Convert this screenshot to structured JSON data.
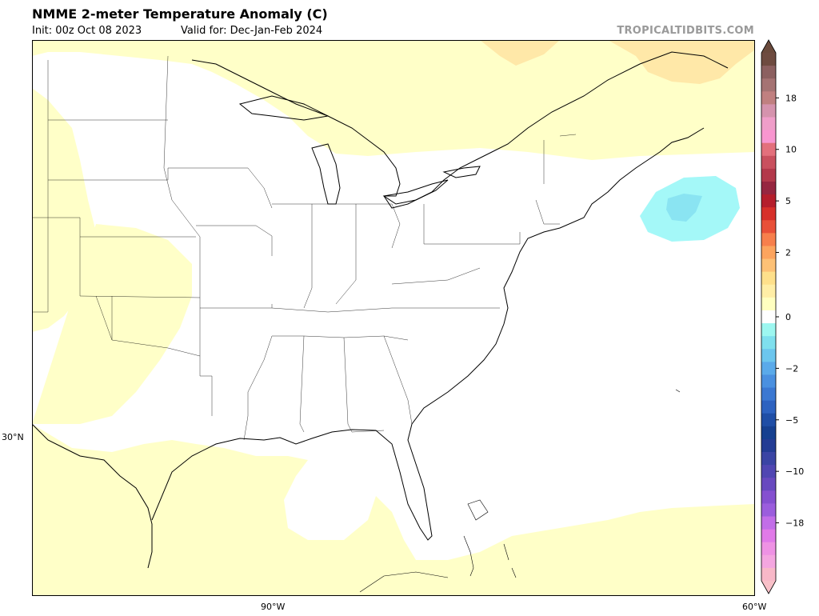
{
  "header": {
    "title": "NMME 2-meter Temperature Anomaly (C)",
    "init": "Init: 00z Oct 08 2023",
    "valid": "Valid for: Dec-Jan-Feb 2024",
    "brand": "TROPICALTIDBITS.COM"
  },
  "map": {
    "region": "Eastern United States and adjacent waters",
    "lon_labels": [
      "90°W",
      "60°W"
    ],
    "lat_labels": [
      "30°N"
    ],
    "anomaly_regions": [
      {
        "name": "northern-great-lakes-warm",
        "category": "0 to 1",
        "color": "#ffffc8"
      },
      {
        "name": "quebec-warm",
        "category": "1 to 2",
        "color": "#ffe8a8"
      },
      {
        "name": "southern-plains-warm",
        "category": "0 to 1",
        "color": "#ffffc8"
      },
      {
        "name": "gulf-of-mexico-warm",
        "category": "0 to 1",
        "color": "#ffffc8"
      },
      {
        "name": "atlantic-south-warm",
        "category": "0 to 1",
        "color": "#ffffc8"
      },
      {
        "name": "atlantic-cool-spot",
        "category": "-1 to 0",
        "color": "#a4f8f8"
      },
      {
        "name": "atlantic-cool-core",
        "category": "-2 to -1",
        "color": "#8ae4f2"
      }
    ]
  },
  "colorbar": {
    "ticks": [
      "18",
      "10",
      "5",
      "2",
      "0",
      "−2",
      "−5",
      "−10",
      "−18"
    ],
    "warm_colors": [
      "#6e4b40",
      "#8c6060",
      "#a57373",
      "#c08080",
      "#d593ad",
      "#ef9ec9",
      "#f896d0",
      "#e3707c",
      "#c9505e",
      "#b3394b",
      "#962640",
      "#b51e2c",
      "#d7302a",
      "#e85038",
      "#f77f4c",
      "#fca45e",
      "#fdc176",
      "#fee08b",
      "#ffeea6",
      "#ffffc0"
    ],
    "cool_colors": [
      "#9df7f0",
      "#7fe0ee",
      "#6cc6ee",
      "#5aaaea",
      "#4a90e0",
      "#3b78d2",
      "#2d62c0",
      "#1f4ea6",
      "#164090",
      "#233c94",
      "#3a44a4",
      "#5046b2",
      "#6849bf",
      "#8550d0",
      "#9b5ddd",
      "#c26ee8",
      "#e07ae8",
      "#ee92e4",
      "#f4a6e0",
      "#f8b8c8"
    ]
  }
}
